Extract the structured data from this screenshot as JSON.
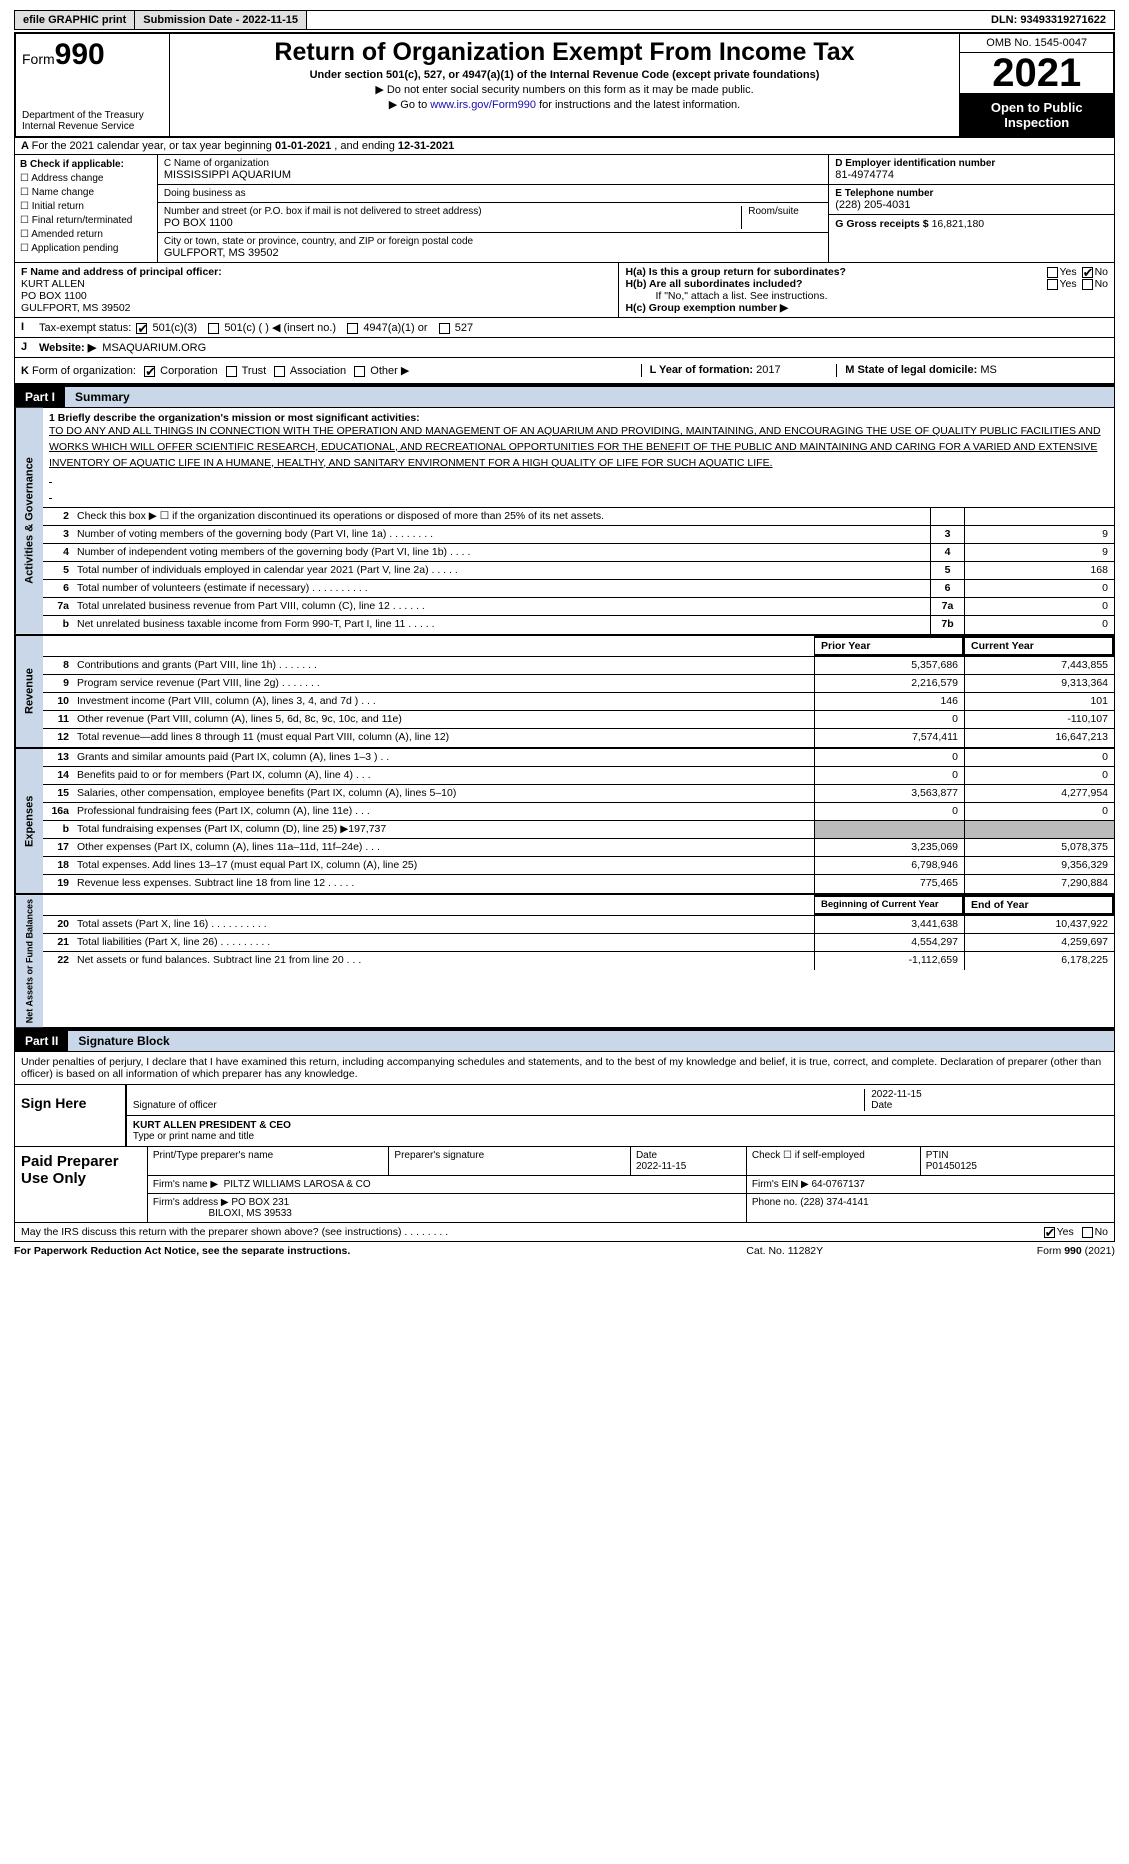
{
  "topbar": {
    "efile": "efile GRAPHIC print",
    "submission": "Submission Date - 2022-11-15",
    "dln_label": "DLN:",
    "dln": "93493319271622"
  },
  "header": {
    "form_word": "Form",
    "form_num": "990",
    "title": "Return of Organization Exempt From Income Tax",
    "subtitle": "Under section 501(c), 527, or 4947(a)(1) of the Internal Revenue Code (except private foundations)",
    "note1": "▶ Do not enter social security numbers on this form as it may be made public.",
    "note2_pre": "▶ Go to ",
    "note2_link": "www.irs.gov/Form990",
    "note2_post": " for instructions and the latest information.",
    "dept": "Department of the Treasury\nInternal Revenue Service",
    "omb": "OMB No. 1545-0047",
    "year": "2021",
    "open": "Open to Public Inspection"
  },
  "rowA": {
    "text_pre": "For the 2021 calendar year, or tax year beginning ",
    "begin": "01-01-2021",
    "mid": " , and ending ",
    "end": "12-31-2021"
  },
  "boxB": {
    "label": "B Check if applicable:",
    "items": [
      "Address change",
      "Name change",
      "Initial return",
      "Final return/terminated",
      "Amended return",
      "Application pending"
    ]
  },
  "boxC": {
    "name_label": "C Name of organization",
    "name": "MISSISSIPPI AQUARIUM",
    "dba_label": "Doing business as",
    "dba": "",
    "street_label": "Number and street (or P.O. box if mail is not delivered to street address)",
    "room_label": "Room/suite",
    "street": "PO BOX 1100",
    "city_label": "City or town, state or province, country, and ZIP or foreign postal code",
    "city": "GULFPORT, MS  39502"
  },
  "boxD": {
    "label": "D Employer identification number",
    "val": "81-4974774"
  },
  "boxE": {
    "label": "E Telephone number",
    "val": "(228) 205-4031"
  },
  "boxG": {
    "label": "G Gross receipts $",
    "val": "16,821,180"
  },
  "boxF": {
    "label": "F  Name and address of principal officer:",
    "lines": [
      "KURT ALLEN",
      "PO BOX 1100",
      "GULFPORT, MS  39502"
    ]
  },
  "boxH": {
    "a_label": "H(a)  Is this a group return for subordinates?",
    "a_yes": "Yes",
    "a_no": "No",
    "b_label": "H(b)  Are all subordinates included?",
    "b_note": "If \"No,\" attach a list. See instructions.",
    "c_label": "H(c)  Group exemption number ▶"
  },
  "rowI": {
    "label": "Tax-exempt status:",
    "opts": [
      "501(c)(3)",
      "501(c) (   ) ◀ (insert no.)",
      "4947(a)(1) or",
      "527"
    ]
  },
  "rowJ": {
    "label": "Website: ▶",
    "val": "MSAQUARIUM.ORG"
  },
  "rowK": {
    "label": "Form of organization:",
    "opts": [
      "Corporation",
      "Trust",
      "Association",
      "Other ▶"
    ],
    "L_label": "L Year of formation:",
    "L_val": "2017",
    "M_label": "M State of legal domicile:",
    "M_val": "MS"
  },
  "partI": {
    "num": "Part I",
    "title": "Summary"
  },
  "mission": {
    "line1_label": "1  Briefly describe the organization's mission or most significant activities:",
    "text": "TO DO ANY AND ALL THINGS IN CONNECTION WITH THE OPERATION AND MANAGEMENT OF AN AQUARIUM AND PROVIDING, MAINTAINING, AND ENCOURAGING THE USE OF QUALITY PUBLIC FACILITIES AND WORKS WHICH WILL OFFER SCIENTIFIC RESEARCH, EDUCATIONAL, AND RECREATIONAL OPPORTUNITIES FOR THE BENEFIT OF THE PUBLIC AND MAINTAINING AND CARING FOR A VARIED AND EXTENSIVE INVENTORY OF AQUATIC LIFE IN A HUMANE, HEALTHY, AND SANITARY ENVIRONMENT FOR A HIGH QUALITY OF LIFE FOR SUCH AQUATIC LIFE."
  },
  "gov_lines": [
    {
      "n": "2",
      "d": "Check this box ▶ ☐  if the organization discontinued its operations or disposed of more than 25% of its net assets.",
      "box": "",
      "v": ""
    },
    {
      "n": "3",
      "d": "Number of voting members of the governing body (Part VI, line 1a)   .   .   .   .   .   .   .   .",
      "box": "3",
      "v": "9"
    },
    {
      "n": "4",
      "d": "Number of independent voting members of the governing body (Part VI, line 1b)   .   .   .   .",
      "box": "4",
      "v": "9"
    },
    {
      "n": "5",
      "d": "Total number of individuals employed in calendar year 2021 (Part V, line 2a)   .   .   .   .   .",
      "box": "5",
      "v": "168"
    },
    {
      "n": "6",
      "d": "Total number of volunteers (estimate if necessary)   .   .   .   .   .   .   .   .   .   .",
      "box": "6",
      "v": "0"
    },
    {
      "n": "7a",
      "d": "Total unrelated business revenue from Part VIII, column (C), line 12   .   .   .   .   .   .",
      "box": "7a",
      "v": "0"
    },
    {
      "n": "b",
      "d": "Net unrelated business taxable income from Form 990-T, Part I, line 11   .   .   .   .   .",
      "box": "7b",
      "v": "0"
    }
  ],
  "rev_hdr": {
    "py": "Prior Year",
    "cy": "Current Year"
  },
  "rev_lines": [
    {
      "n": "8",
      "d": "Contributions and grants (Part VIII, line 1h)   .   .   .   .   .   .   .",
      "py": "5,357,686",
      "cy": "7,443,855"
    },
    {
      "n": "9",
      "d": "Program service revenue (Part VIII, line 2g)   .   .   .   .   .   .   .",
      "py": "2,216,579",
      "cy": "9,313,364"
    },
    {
      "n": "10",
      "d": "Investment income (Part VIII, column (A), lines 3, 4, and 7d )   .   .   .",
      "py": "146",
      "cy": "101"
    },
    {
      "n": "11",
      "d": "Other revenue (Part VIII, column (A), lines 5, 6d, 8c, 9c, 10c, and 11e)",
      "py": "0",
      "cy": "-110,107"
    },
    {
      "n": "12",
      "d": "Total revenue—add lines 8 through 11 (must equal Part VIII, column (A), line 12)",
      "py": "7,574,411",
      "cy": "16,647,213"
    }
  ],
  "exp_lines": [
    {
      "n": "13",
      "d": "Grants and similar amounts paid (Part IX, column (A), lines 1–3 )   .   .",
      "py": "0",
      "cy": "0"
    },
    {
      "n": "14",
      "d": "Benefits paid to or for members (Part IX, column (A), line 4)   .   .   .",
      "py": "0",
      "cy": "0"
    },
    {
      "n": "15",
      "d": "Salaries, other compensation, employee benefits (Part IX, column (A), lines 5–10)",
      "py": "3,563,877",
      "cy": "4,277,954"
    },
    {
      "n": "16a",
      "d": "Professional fundraising fees (Part IX, column (A), line 11e)   .   .   .",
      "py": "0",
      "cy": "0"
    },
    {
      "n": "b",
      "d": "Total fundraising expenses (Part IX, column (D), line 25) ▶197,737",
      "py": "",
      "cy": "",
      "shade": true
    },
    {
      "n": "17",
      "d": "Other expenses (Part IX, column (A), lines 11a–11d, 11f–24e)   .   .   .",
      "py": "3,235,069",
      "cy": "5,078,375"
    },
    {
      "n": "18",
      "d": "Total expenses. Add lines 13–17 (must equal Part IX, column (A), line 25)",
      "py": "6,798,946",
      "cy": "9,356,329"
    },
    {
      "n": "19",
      "d": "Revenue less expenses. Subtract line 18 from line 12   .   .   .   .   .",
      "py": "775,465",
      "cy": "7,290,884"
    }
  ],
  "na_hdr": {
    "py": "Beginning of Current Year",
    "cy": "End of Year"
  },
  "na_lines": [
    {
      "n": "20",
      "d": "Total assets (Part X, line 16)   .   .   .   .   .   .   .   .   .   .",
      "py": "3,441,638",
      "cy": "10,437,922"
    },
    {
      "n": "21",
      "d": "Total liabilities (Part X, line 26)   .   .   .   .   .   .   .   .   .",
      "py": "4,554,297",
      "cy": "4,259,697"
    },
    {
      "n": "22",
      "d": "Net assets or fund balances. Subtract line 21 from line 20   .   .   .",
      "py": "-1,112,659",
      "cy": "6,178,225"
    }
  ],
  "partII": {
    "num": "Part II",
    "title": "Signature Block"
  },
  "sig": {
    "intro": "Under penalties of perjury, I declare that I have examined this return, including accompanying schedules and statements, and to the best of my knowledge and belief, it is true, correct, and complete. Declaration of preparer (other than officer) is based on all information of which preparer has any knowledge.",
    "sign_here": "Sign Here",
    "sig_officer": "Signature of officer",
    "date": "2022-11-15",
    "date_lbl": "Date",
    "name": "KURT ALLEN  PRESIDENT & CEO",
    "name_lbl": "Type or print name and title"
  },
  "prep": {
    "label": "Paid Preparer Use Only",
    "h": [
      "Print/Type preparer's name",
      "Preparer's signature",
      "Date",
      "",
      "PTIN"
    ],
    "r1": [
      "",
      "",
      "2022-11-15",
      "Check ☐ if self-employed",
      "P01450125"
    ],
    "firm_label": "Firm's name    ▶",
    "firm": "PILTZ WILLIAMS LAROSA & CO",
    "ein_label": "Firm's EIN ▶",
    "ein": "64-0767137",
    "addr_label": "Firm's address ▶",
    "addr1": "PO BOX 231",
    "addr2": "BILOXI, MS  39533",
    "phone_label": "Phone no.",
    "phone": "(228) 374-4141"
  },
  "discuss": {
    "q": "May the IRS discuss this return with the preparer shown above? (see instructions)   .   .   .   .   .   .   .   .",
    "yes": "Yes",
    "no": "No"
  },
  "footer": {
    "left": "For Paperwork Reduction Act Notice, see the separate instructions.",
    "mid": "Cat. No. 11282Y",
    "right": "Form 990 (2021)"
  },
  "side_labels": {
    "gov": "Activities & Governance",
    "rev": "Revenue",
    "exp": "Expenses",
    "na": "Net Assets or Fund Balances"
  }
}
